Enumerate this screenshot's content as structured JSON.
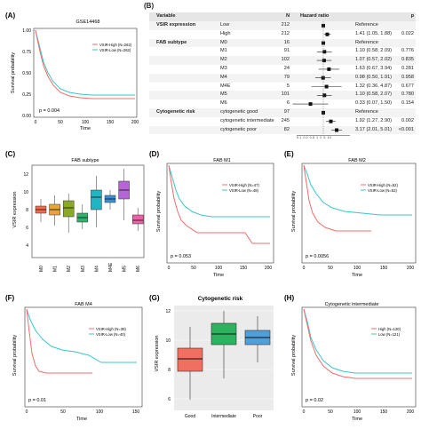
{
  "panels": {
    "A": {
      "label": "(A)",
      "title": "GSE14468",
      "p": "p = 0.004",
      "legend": [
        "VSIR-High (N=262)",
        "VSIR-Low (N=262)"
      ],
      "ylabel": "Survival probability",
      "xlabel": "Time",
      "yticks": [
        "1.00",
        "0.75",
        "0.50",
        "0.25",
        "0.00"
      ],
      "xticks": [
        "0",
        "50",
        "100",
        "150",
        "200"
      ]
    },
    "B": {
      "label": "(B)",
      "header": {
        "variable": "Variable",
        "n": "N",
        "hr": "Hazard ratio",
        "p": "p"
      },
      "rows": [
        {
          "var": "VSIR expression",
          "level": "Low",
          "n": "212",
          "hr": "Reference",
          "p": "",
          "est": null
        },
        {
          "var": "",
          "level": "High",
          "n": "212",
          "hr": "1.41 (1.05, 1.88)",
          "p": "0.022",
          "est": 1.41
        },
        {
          "var": "FAB subtype",
          "level": "M0",
          "n": "16",
          "hr": "Reference",
          "p": "",
          "est": null
        },
        {
          "var": "",
          "level": "M1",
          "n": "91",
          "hr": "1.10 (0.58, 2.09)",
          "p": "0.776",
          "est": 1.1
        },
        {
          "var": "",
          "level": "M2",
          "n": "102",
          "hr": "1.07 (0.57, 2.02)",
          "p": "0.835",
          "est": 1.07
        },
        {
          "var": "",
          "level": "M3",
          "n": "24",
          "hr": "1.63 (0.67, 3.94)",
          "p": "0.281",
          "est": 1.63
        },
        {
          "var": "",
          "level": "M4",
          "n": "79",
          "hr": "0.98 (0.50, 1.91)",
          "p": "0.958",
          "est": 0.98
        },
        {
          "var": "",
          "level": "M4E",
          "n": "5",
          "hr": "1.32 (0.36, 4.87)",
          "p": "0.677",
          "est": 1.32
        },
        {
          "var": "",
          "level": "M5",
          "n": "101",
          "hr": "1.10 (0.58, 2.07)",
          "p": "0.780",
          "est": 1.1
        },
        {
          "var": "",
          "level": "M6",
          "n": "6",
          "hr": "0.33 (0.07, 1.50)",
          "p": "0.154",
          "est": 0.33
        },
        {
          "var": "Cytogenetic risk",
          "level": "cytogenetic good",
          "n": "97",
          "hr": "Reference",
          "p": "",
          "est": null
        },
        {
          "var": "",
          "level": "cytogenetic intermediate",
          "n": "245",
          "hr": "1.92 (1.27, 2.90)",
          "p": "0.002",
          "est": 1.92
        },
        {
          "var": "",
          "level": "cytogenetic poor",
          "n": "82",
          "hr": "3.17 (2.01, 5.01)",
          "p": "<0.001",
          "est": 3.17
        }
      ],
      "axis_ticks": "0.1 0.2 0.5 1 2 5 10"
    },
    "C": {
      "label": "(C)",
      "title": "FAB subtype",
      "ylabel": "VSIR expression",
      "yticks": [
        "12",
        "10",
        "8",
        "6",
        "4"
      ],
      "groups": [
        "M0",
        "M1",
        "M2",
        "M3",
        "M4",
        "M4E",
        "M5",
        "M6"
      ],
      "colors": [
        "#f26c4f",
        "#e8a33c",
        "#8aa82a",
        "#2fb36c",
        "#1fb5c5",
        "#3b8fd9",
        "#b565d6",
        "#ef5fa7"
      ]
    },
    "D": {
      "label": "(D)",
      "title": "FAB M1",
      "p": "p = 0.053",
      "legend": [
        "VSIR-High (N=47)",
        "VSIR-Low (N=48)"
      ],
      "ylabel": "Survival probability",
      "xlabel": "Time",
      "xticks": [
        "0",
        "50",
        "100",
        "150",
        "200"
      ]
    },
    "E": {
      "label": "(E)",
      "title": "FAB M2",
      "p": "p = 0.0056",
      "legend": [
        "VSIR-High (N=52)",
        "VSIR-Low (N=52)"
      ],
      "ylabel": "Survival probability",
      "xlabel": "Time",
      "xticks": [
        "0",
        "50",
        "100",
        "150",
        "200"
      ]
    },
    "F": {
      "label": "(F)",
      "title": "FAB M4",
      "p": "p = 0.01",
      "legend": [
        "VSIR-High (N=39)",
        "VSIR-Low (N=40)"
      ],
      "ylabel": "Survival probability",
      "xlabel": "Time",
      "xticks": [
        "0",
        "50",
        "100",
        "150"
      ]
    },
    "G": {
      "label": "(G)",
      "title": "Cytogenetic risk",
      "ylabel": "VSIR expression",
      "yticks": [
        "12",
        "10",
        "8",
        "6"
      ],
      "groups": [
        "Good",
        "Intermediate",
        "Poor"
      ],
      "colors": [
        "#ef6f61",
        "#2db25f",
        "#4f9fd9"
      ]
    },
    "H": {
      "label": "(H)",
      "title": "Cytogenetic intermediate",
      "p": "p = 0.02",
      "legend": [
        "High (N=120)",
        "Low (N=121)"
      ],
      "ylabel": "Survival probability",
      "xlabel": "Time",
      "xticks": [
        "0",
        "50",
        "100",
        "150",
        "200"
      ]
    }
  },
  "colors": {
    "high": "#f26c6c",
    "low": "#3cc4c8"
  }
}
